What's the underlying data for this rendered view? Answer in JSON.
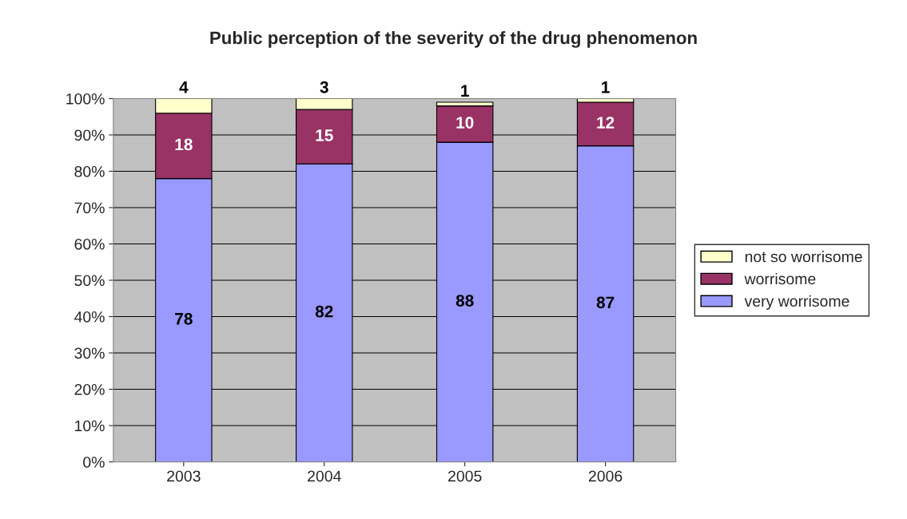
{
  "chart_data": {
    "type": "bar",
    "title": "Public perception of the severity of the drug phenomenon",
    "categories": [
      "2003",
      "2004",
      "2005",
      "2006"
    ],
    "stacked": true,
    "data_labels": true,
    "grid": "y",
    "legend": "right",
    "ylim": [
      0,
      100
    ],
    "yticks": [
      {
        "value": 0,
        "label": "0%"
      },
      {
        "value": 10,
        "label": "10%"
      },
      {
        "value": 20,
        "label": "20%"
      },
      {
        "value": 30,
        "label": "30%"
      },
      {
        "value": 40,
        "label": "40%"
      },
      {
        "value": 50,
        "label": "50%"
      },
      {
        "value": 60,
        "label": "60%"
      },
      {
        "value": 70,
        "label": "70%"
      },
      {
        "value": 80,
        "label": "80%"
      },
      {
        "value": 90,
        "label": "90%"
      },
      {
        "value": 100,
        "label": "100%"
      }
    ],
    "series": [
      {
        "name": "very worrisome",
        "color": "#9999ff",
        "values": [
          78,
          82,
          88,
          87
        ]
      },
      {
        "name": "worrisome",
        "color": "#993366",
        "values": [
          18,
          15,
          10,
          12
        ]
      },
      {
        "name": "not so worrisome",
        "color": "#ffffcc",
        "values": [
          4,
          3,
          1,
          1
        ]
      }
    ]
  }
}
